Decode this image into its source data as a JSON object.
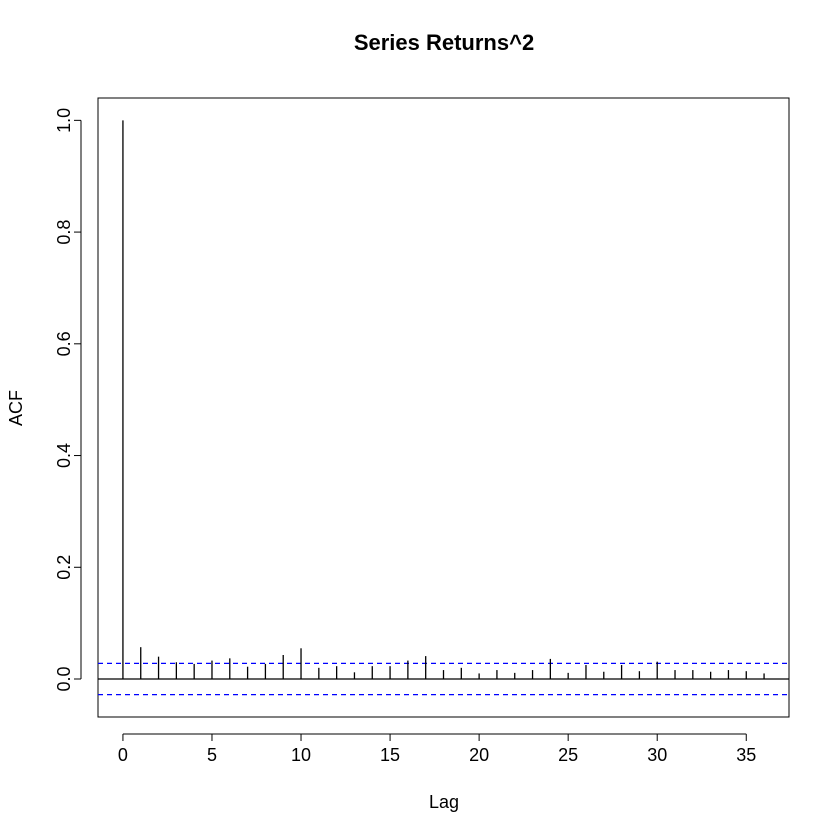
{
  "chart_data": {
    "type": "bar",
    "title": "Series  Returns^2",
    "xlabel": "Lag",
    "ylabel": "ACF",
    "xlim": [
      -1.4,
      37.4
    ],
    "ylim": [
      -0.068,
      1.04
    ],
    "x_ticks": [
      0,
      5,
      10,
      15,
      20,
      25,
      30,
      35
    ],
    "x_tick_labels": [
      "0",
      "5",
      "10",
      "15",
      "20",
      "25",
      "30",
      "35"
    ],
    "y_ticks": [
      0,
      0.2,
      0.4,
      0.6,
      0.8,
      1.0
    ],
    "y_tick_labels": [
      "0.0",
      "0.2",
      "0.4",
      "0.6",
      "0.8",
      "1.0"
    ],
    "lags": [
      0,
      1,
      2,
      3,
      4,
      5,
      6,
      7,
      8,
      9,
      10,
      11,
      12,
      13,
      14,
      15,
      16,
      17,
      18,
      19,
      20,
      21,
      22,
      23,
      24,
      25,
      26,
      27,
      28,
      29,
      30,
      31,
      32,
      33,
      34,
      35,
      36
    ],
    "acf": [
      1.0,
      0.057,
      0.04,
      0.03,
      0.027,
      0.033,
      0.037,
      0.022,
      0.027,
      0.043,
      0.055,
      0.02,
      0.023,
      0.012,
      0.023,
      0.023,
      0.033,
      0.041,
      0.016,
      0.02,
      0.01,
      0.016,
      0.011,
      0.016,
      0.036,
      0.011,
      0.025,
      0.013,
      0.025,
      0.014,
      0.031,
      0.016,
      0.016,
      0.013,
      0.016,
      0.014,
      0.01
    ],
    "confidence_band": 0.028,
    "colors": {
      "bars": "#000000",
      "confidence": "#0000ff",
      "zero_line": "#000000"
    },
    "grid": false
  }
}
